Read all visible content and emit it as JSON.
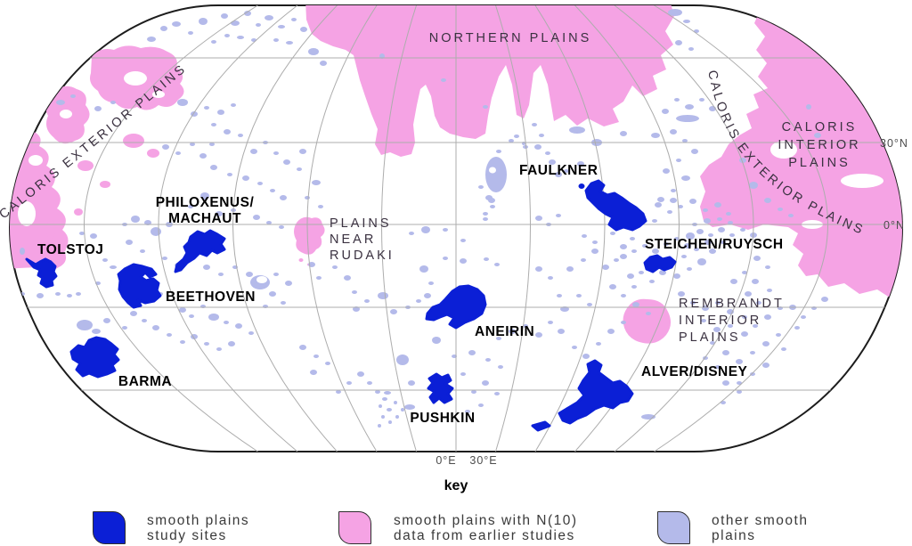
{
  "figure": {
    "type": "map",
    "description": "Global map of Mercury smooth plains with study sites"
  },
  "colors": {
    "study_sites_blue": "#0b1fd6",
    "earlier_studies_pink": "#f5a3e4",
    "other_plains_lavender": "#b4baea",
    "graticule_gray": "#adadad",
    "outline_dark": "#1c1c1c"
  },
  "map_labels": {
    "northern_plains": "NORTHERN PLAINS",
    "caloris_exterior_left": "CALORIS EXTERIOR PLAINS",
    "caloris_exterior_right": "CALORIS EXTERIOR PLAINS",
    "caloris_interior": {
      "lines": [
        "CALORIS",
        "INTERIOR",
        "PLAINS"
      ]
    },
    "plains_near_rudaki": {
      "lines": [
        "PLAINS",
        "NEAR",
        "RUDAKI"
      ]
    },
    "rembrandt_interior": {
      "lines": [
        "REMBRANDT",
        "INTERIOR",
        "PLAINS"
      ]
    },
    "philoxenus": {
      "lines": [
        "PHILOXENUS/",
        "MACHAUT"
      ]
    },
    "tolstoj": "TOLSTOJ",
    "beethoven": "BEETHOVEN",
    "barma": "BARMA",
    "faulkner": "FAULKNER",
    "steichen_ruysch": "STEICHEN/RUYSCH",
    "aneirin": "ANEIRIN",
    "pushkin": "PUSHKIN",
    "alver_disney": "ALVER/DISNEY"
  },
  "graticule_labels": {
    "lat_30n": "30°N",
    "lat_0n": "0°N",
    "lon_0e": "0°E",
    "lon_30e": "30°E"
  },
  "key": {
    "title": "key",
    "items": [
      {
        "label_lines": [
          "smooth plains",
          "study sites"
        ],
        "color": "#0b1fd6"
      },
      {
        "label_lines": [
          "smooth plains with N(10)",
          "data from earlier studies"
        ],
        "color": "#f5a3e4"
      },
      {
        "label_lines": [
          "other smooth",
          "plains"
        ],
        "color": "#b4baea"
      }
    ]
  }
}
